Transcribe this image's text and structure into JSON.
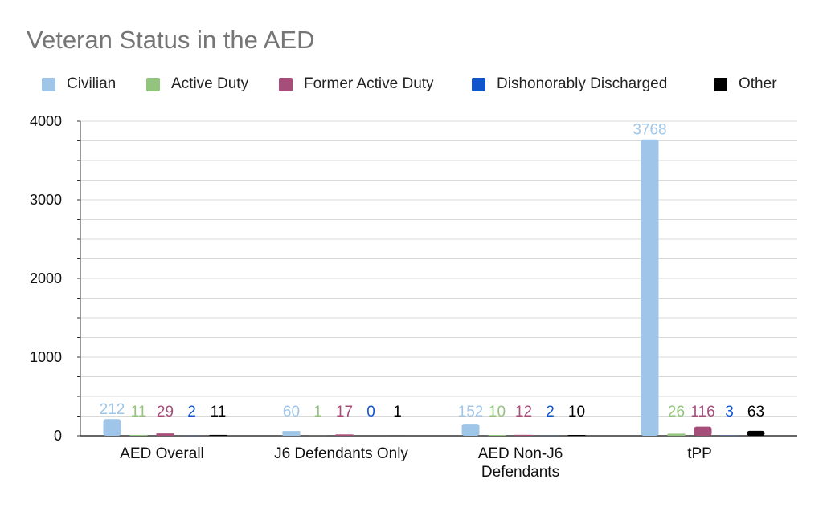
{
  "chart_data": {
    "type": "bar",
    "title": "Veteran Status in the AED",
    "xlabel": "",
    "ylabel": "",
    "ylim": [
      0,
      4000
    ],
    "yticks": [
      "0",
      "1000",
      "2000",
      "3000",
      "4000"
    ],
    "grid": true,
    "legend_position": "top",
    "categories": [
      [
        "AED Overall"
      ],
      [
        "J6 Defendants Only"
      ],
      [
        "AED Non-J6",
        "Defendants"
      ],
      [
        "tPP"
      ]
    ],
    "series": [
      {
        "name": "Civilian",
        "color": "#9fc5e8",
        "values": [
          212,
          60,
          152,
          3768
        ],
        "labels": [
          "212",
          "60",
          "152",
          "3768"
        ]
      },
      {
        "name": "Active Duty",
        "color": "#93c47d",
        "values": [
          11,
          1,
          10,
          26
        ],
        "labels": [
          "11",
          "1",
          "10",
          "26"
        ]
      },
      {
        "name": "Former Active Duty",
        "color": "#a64d79",
        "values": [
          29,
          17,
          12,
          116
        ],
        "labels": [
          "29",
          "17",
          "12",
          "116"
        ]
      },
      {
        "name": "Dishonorably Discharged",
        "color": "#1155cc",
        "values": [
          2,
          0,
          2,
          3
        ],
        "labels": [
          "2",
          "0",
          "2",
          "3"
        ]
      },
      {
        "name": "Other",
        "color": "#000000",
        "values": [
          11,
          1,
          10,
          63
        ],
        "labels": [
          "11",
          "1",
          "10",
          "63"
        ]
      }
    ]
  }
}
